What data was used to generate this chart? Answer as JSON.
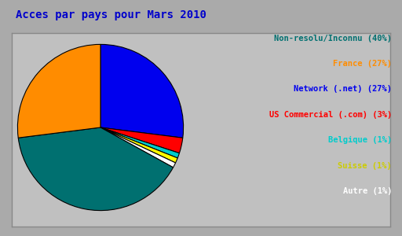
{
  "title": "Acces par pays pour Mars 2010",
  "title_color": "#0000CC",
  "title_fontsize": 10,
  "background_color": "#AAAAAA",
  "plot_bg_color": "#C0C0C0",
  "labels": [
    "Non-resolu/Inconnu (40%)",
    "France (27%)",
    "Network (.net) (27%)",
    "US Commercial (.com) (3%)",
    "Belgique (1%)",
    "Suisse (1%)",
    "Autre (1%)"
  ],
  "sizes": [
    40,
    27,
    27,
    3,
    1,
    1,
    1
  ],
  "colors": [
    "#007070",
    "#FF8C00",
    "#0000EE",
    "#FF0000",
    "#00CCCC",
    "#FFFF00",
    "#FFFFFF"
  ],
  "text_colors": [
    "#007070",
    "#FF8C00",
    "#0000EE",
    "#FF0000",
    "#00CCCC",
    "#CCCC00",
    "#FFFFFF"
  ],
  "startangle": 90,
  "legend_fontsize": 7.5
}
